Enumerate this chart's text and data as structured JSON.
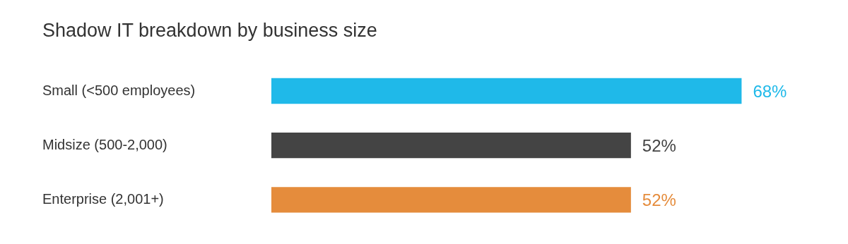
{
  "chart_data": {
    "type": "bar",
    "orientation": "horizontal",
    "title": "Shadow IT breakdown by business size",
    "categories": [
      "Small (<500 employees)",
      "Midsize (500-2,000)",
      "Enterprise (2,001+)"
    ],
    "values": [
      68,
      52,
      52
    ],
    "colors": [
      "#1fb9e9",
      "#444444",
      "#e58c3c"
    ],
    "value_labels": [
      "68%",
      "52%",
      "52%"
    ]
  }
}
